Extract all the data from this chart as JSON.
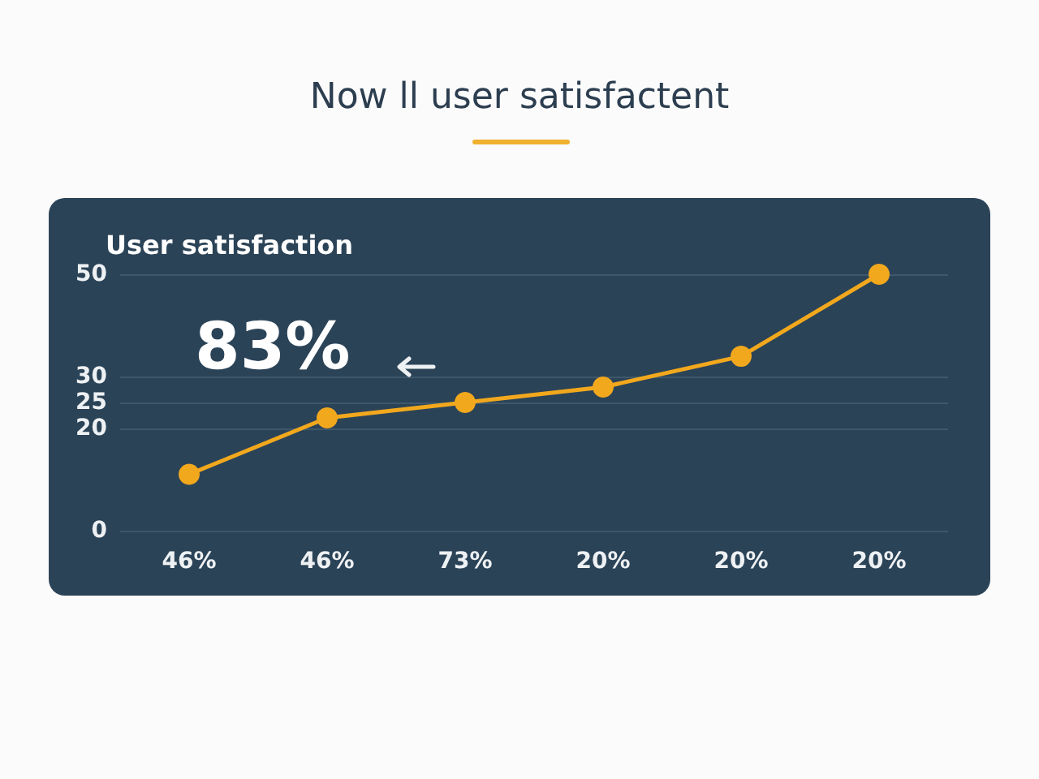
{
  "chart_data": {
    "type": "line",
    "title": "Now ll user satisfactent",
    "subtitle": "User satisfaction",
    "annotations": [
      "83%"
    ],
    "categories": [
      "46%",
      "46%",
      "73%",
      "20%",
      "20%",
      "20%"
    ],
    "series": [
      {
        "color": "#f2a81d",
        "values": [
          11,
          22,
          25,
          28,
          34,
          50
        ]
      }
    ],
    "ylim": [
      0,
      50
    ],
    "yticks": [
      0,
      20,
      25,
      30,
      50
    ],
    "grid": "y",
    "marker": "circle",
    "line_style": "solid"
  }
}
